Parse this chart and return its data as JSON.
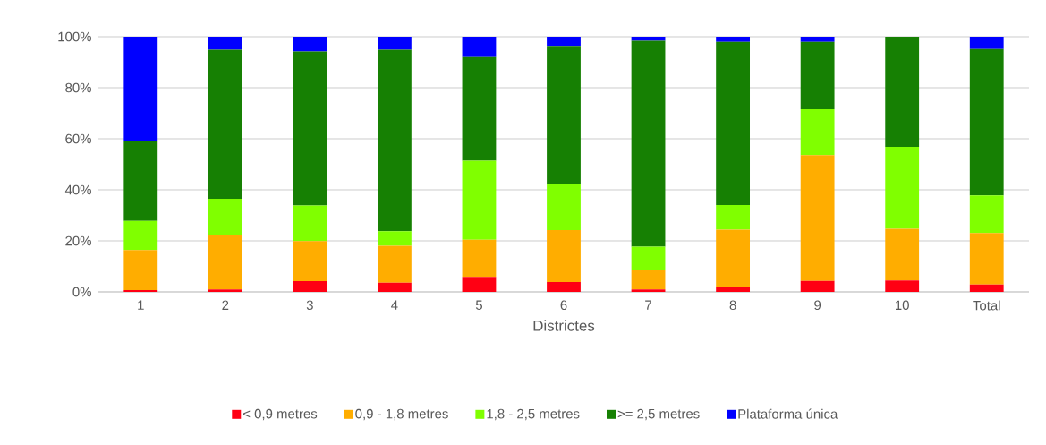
{
  "chart_data": {
    "type": "bar",
    "stacked": true,
    "xlabel": "Districtes",
    "categories": [
      "1",
      "2",
      "3",
      "4",
      "5",
      "6",
      "7",
      "8",
      "9",
      "10",
      "Total"
    ],
    "series": [
      {
        "name": "< 0,9 metres",
        "color": "#ff0013",
        "values": [
          0.7,
          1.0,
          4.2,
          3.6,
          5.9,
          3.9,
          1.0,
          1.8,
          4.3,
          4.5,
          2.9
        ]
      },
      {
        "name": "0,9 - 1,8 metres",
        "color": "#ffad00",
        "values": [
          15.7,
          21.3,
          15.7,
          14.5,
          14.5,
          20.3,
          7.4,
          22.6,
          49.3,
          20.2,
          20.2
        ]
      },
      {
        "name": "1,8 - 2,5 metres",
        "color": "#80ff00",
        "values": [
          11.4,
          14.2,
          14.0,
          5.7,
          31.0,
          18.2,
          9.3,
          9.6,
          18.0,
          32.1,
          14.7
        ]
      },
      {
        "name": ">= 2,5 metres",
        "color": "#168003",
        "values": [
          31.4,
          58.4,
          60.3,
          71.1,
          40.6,
          54.0,
          80.7,
          64.0,
          26.4,
          43.2,
          57.4
        ]
      },
      {
        "name": "Plataforma única",
        "color": "#0000ff",
        "values": [
          40.8,
          5.1,
          5.8,
          5.1,
          8.0,
          3.6,
          1.6,
          2.0,
          2.0,
          0,
          4.8
        ]
      }
    ],
    "ylim": [
      0,
      100
    ],
    "yticks": [
      {
        "value": 0,
        "label": "0%"
      },
      {
        "value": 20,
        "label": "20%"
      },
      {
        "value": 40,
        "label": "40%"
      },
      {
        "value": 60,
        "label": "60%"
      },
      {
        "value": 80,
        "label": "80%"
      },
      {
        "value": 100,
        "label": "100%"
      }
    ],
    "grid": "y",
    "legend": "bottom"
  }
}
